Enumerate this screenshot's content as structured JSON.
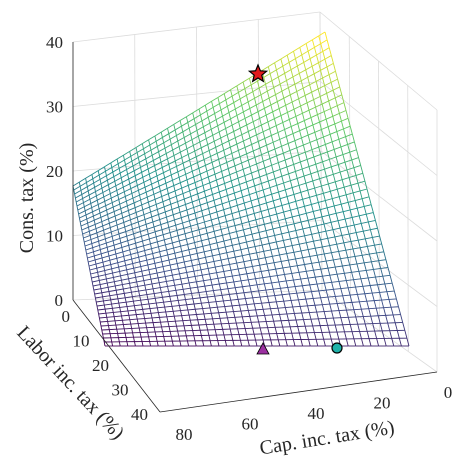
{
  "chart_data": {
    "type": "surface",
    "x_axis": {
      "label": "Cap. inc. tax (%)",
      "range": [
        0,
        80
      ],
      "ticks": [
        "80",
        "60",
        "40",
        "20",
        "0"
      ]
    },
    "y_axis": {
      "label": "Labor inc. tax (%)",
      "range": [
        0,
        40
      ],
      "ticks": [
        "0",
        "10",
        "20",
        "30",
        "40"
      ]
    },
    "z_axis": {
      "label": "Cons. tax (%)",
      "range": [
        0,
        40
      ],
      "ticks": [
        "0",
        "10",
        "20",
        "30",
        "40"
      ]
    },
    "grid": true,
    "colormap": "viridis",
    "surface_corners": {
      "cap0_labor0": 0,
      "cap80_labor0": 17,
      "cap80_labor40": 41,
      "cap0_labor40": 5
    },
    "markers": [
      {
        "symbol": "star",
        "color": "#e31a1c",
        "cap_tax": 52,
        "labor_tax": 40,
        "cons_tax": 35
      },
      {
        "symbol": "triangle",
        "color": "#9b30a0",
        "cap_tax": 46,
        "labor_tax": 0,
        "cons_tax": 0
      },
      {
        "symbol": "circle",
        "color": "#20b2aa",
        "cap_tax": 0,
        "labor_tax": 26,
        "cons_tax": 0
      }
    ]
  }
}
